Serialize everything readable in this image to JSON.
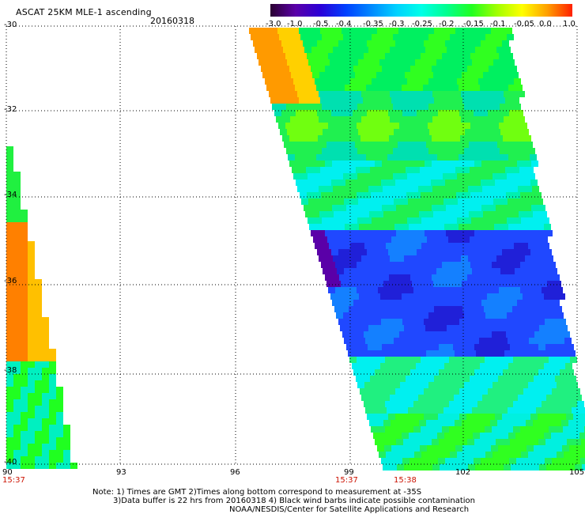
{
  "header": {
    "title": "ASCAT 25KM MLE-1 ascending",
    "date": "20160318"
  },
  "colorbar": {
    "labels": [
      "-3.0",
      "-1.0",
      "-0.5",
      "-0.4",
      "-0.35",
      "-0.3",
      "-0.25",
      "-0.2",
      "-0.15",
      "-0.1",
      "-0.05",
      "0.0",
      "1.0"
    ],
    "colors": [
      "#2a0030",
      "#5a00a8",
      "#2a00d8",
      "#0040ff",
      "#0088ff",
      "#00d0ff",
      "#00ffe8",
      "#00ff90",
      "#20ff20",
      "#a0ff00",
      "#ffff00",
      "#ffa000",
      "#ff2000"
    ]
  },
  "axes": {
    "lat_labels": [
      "-30",
      "-32",
      "-34",
      "-36",
      "-38",
      "-40"
    ],
    "lon_labels": [
      "90",
      "93",
      "96",
      "99",
      "102",
      "105"
    ]
  },
  "times": {
    "left": "15:37",
    "mid1": "15:37",
    "mid2": "15:38"
  },
  "notes": {
    "line1": "Note: 1) Times are GMT 2)Times along bottom correspond to measurement at -35S",
    "line2": "3)Data buffer is 22 hrs from 20160318 4) Black wind barbs indicate possible contamination",
    "line3": "NOAA/NESDIS/Center for Satellite Applications and Research"
  }
}
